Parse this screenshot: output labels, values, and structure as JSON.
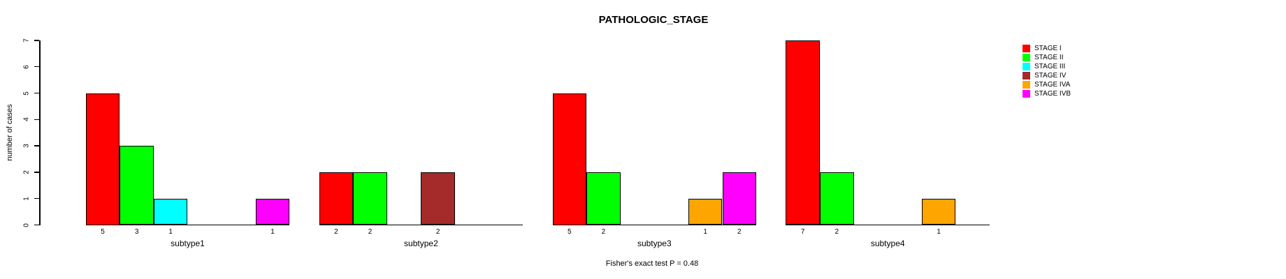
{
  "chart_data": {
    "type": "bar",
    "title": "PATHOLOGIC_STAGE",
    "ylabel": "number of cases",
    "xlabel": "",
    "ylim": [
      0,
      7
    ],
    "yticks": [
      0,
      1,
      2,
      3,
      4,
      5,
      6,
      7
    ],
    "grid": false,
    "legend_position": "right-outside",
    "bar_value_labels_shown": true,
    "categories": [
      "subtype1",
      "subtype2",
      "subtype3",
      "subtype4"
    ],
    "series": [
      {
        "name": "STAGE I",
        "color": "#FF0000",
        "values": [
          5,
          2,
          5,
          7
        ]
      },
      {
        "name": "STAGE II",
        "color": "#00FF00",
        "values": [
          3,
          2,
          2,
          2
        ]
      },
      {
        "name": "STAGE III",
        "color": "#00FFFF",
        "values": [
          1,
          0,
          0,
          0
        ]
      },
      {
        "name": "STAGE IV",
        "color": "#A52A2A",
        "values": [
          0,
          2,
          0,
          0
        ]
      },
      {
        "name": "STAGE IVA",
        "color": "#FFA500",
        "values": [
          0,
          0,
          1,
          1
        ]
      },
      {
        "name": "STAGE IVB",
        "color": "#FF00FF",
        "values": [
          1,
          0,
          2,
          0
        ]
      }
    ],
    "annotation": "Fisher's exact test P = 0.48"
  }
}
